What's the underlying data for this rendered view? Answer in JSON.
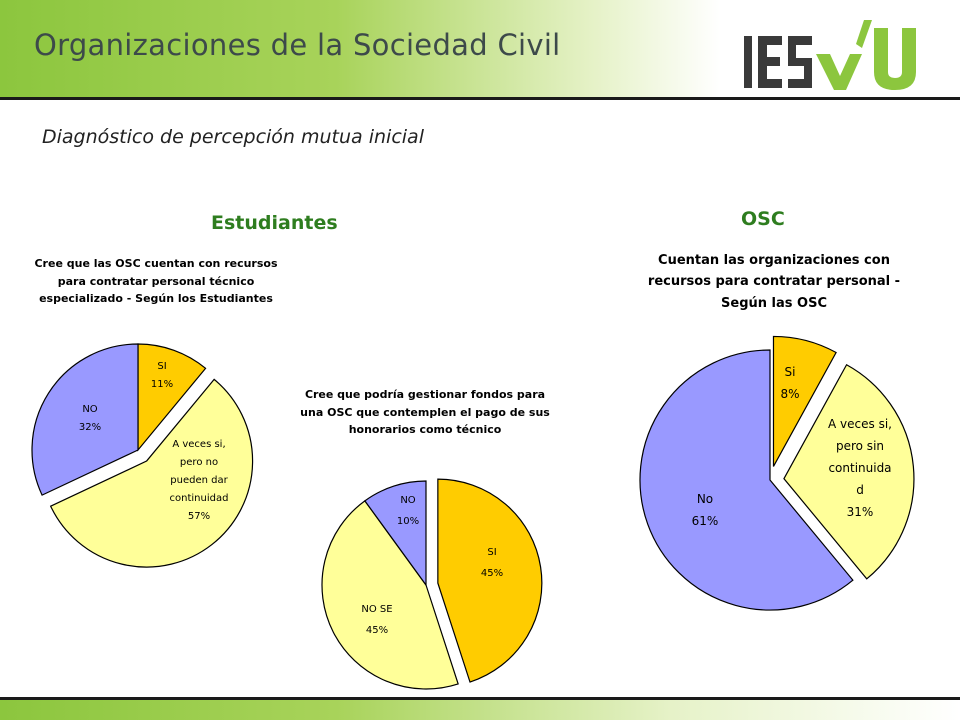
{
  "header": {
    "title": "Organizaciones de la Sociedad Civil",
    "logo_text": "IESVU"
  },
  "subtitle": "Diagnóstico de percepción mutua inicial",
  "groups": {
    "left": "Estudiantes",
    "right": "OSC"
  },
  "colors": {
    "header_green": "#8cc63e",
    "logo_green": "#8cc63e",
    "logo_dark": "#3a3a3a",
    "group_title": "#2e7d1f",
    "slice_orange": "#ffcc00",
    "slice_yellow": "#ffff99",
    "slice_lavender": "#9999ff"
  },
  "chart_data": [
    {
      "type": "pie",
      "title": "Cree que las OSC cuentan con recursos para contratar personal técnico especializado - Según los Estudiantes",
      "title_lines": [
        "Cree que las OSC cuentan con recursos",
        "para contratar personal técnico",
        "especializado - Según los Estudiantes"
      ],
      "slices": [
        {
          "label": "SI",
          "value": 11,
          "value_label": "11%",
          "label_lines": [
            "SI",
            "11%"
          ],
          "color": "#ffcc00",
          "exploded": false
        },
        {
          "label": "A veces si, pero no pueden dar continuidad",
          "value": 57,
          "value_label": "57%",
          "label_lines": [
            "A veces si,",
            "pero no",
            "pueden dar",
            "continuidad",
            "57%"
          ],
          "color": "#ffff99",
          "exploded": true
        },
        {
          "label": "NO",
          "value": 32,
          "value_label": "32%",
          "label_lines": [
            "NO",
            "32%"
          ],
          "color": "#9999ff",
          "exploded": false
        }
      ]
    },
    {
      "type": "pie",
      "title": "Cree que podría gestionar fondos para una OSC que contemplen el pago de sus honorarios como técnico",
      "title_lines": [
        "Cree que podría gestionar fondos para",
        "una OSC que contemplen el pago de sus",
        "honorarios como técnico"
      ],
      "slices": [
        {
          "label": "SI",
          "value": 45,
          "value_label": "45%",
          "label_lines": [
            "SI",
            "45%"
          ],
          "color": "#ffcc00",
          "exploded": true
        },
        {
          "label": "NO SE",
          "value": 45,
          "value_label": "45%",
          "label_lines": [
            "NO SE",
            "45%"
          ],
          "color": "#ffff99",
          "exploded": false
        },
        {
          "label": "NO",
          "value": 10,
          "value_label": "10%",
          "label_lines": [
            "NO",
            "10%"
          ],
          "color": "#9999ff",
          "exploded": false
        }
      ]
    },
    {
      "type": "pie",
      "title": "Cuentan las organizaciones con recursos para contratar personal - Según las OSC",
      "title_lines": [
        "Cuentan las organizaciones con",
        "recursos para contratar personal -",
        "Según las OSC"
      ],
      "slices": [
        {
          "label": "Si",
          "value": 8,
          "value_label": "8%",
          "label_lines": [
            "Si",
            "8%"
          ],
          "color": "#ffcc00",
          "exploded": true
        },
        {
          "label": "A veces si, pero sin continuidad",
          "value": 31,
          "value_label": "31%",
          "label_lines": [
            "A veces si,",
            "pero sin",
            "continuida",
            "d",
            "31%"
          ],
          "color": "#ffff99",
          "exploded": true
        },
        {
          "label": "No",
          "value": 61,
          "value_label": "61%",
          "label_lines": [
            "No",
            "61%"
          ],
          "color": "#9999ff",
          "exploded": false
        }
      ]
    }
  ]
}
